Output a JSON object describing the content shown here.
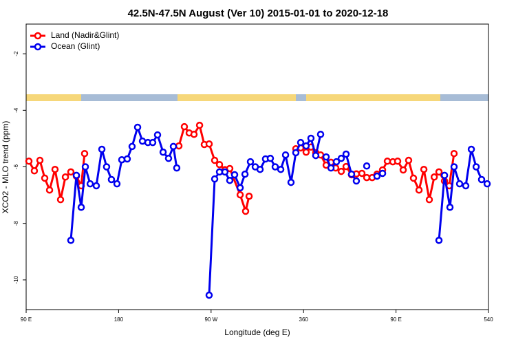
{
  "chart_data": {
    "type": "line",
    "title": "42.5N-47.5N August (Ver 10)   2015-01-01 to 2020-12-18",
    "x_label": "Longitude (deg E)",
    "y_label": "XCO2 - MLO trend (ppm)",
    "xlim": [
      90,
      540
    ],
    "xticks": [
      {
        "value": 90,
        "label": "90 E"
      },
      180,
      {
        "value": 270,
        "label": "90 W"
      },
      360,
      {
        "value": 450,
        "label": "90 E"
      },
      540
    ],
    "ylim": [
      -11.05,
      -0.95
    ],
    "yticks": [
      -2,
      -4,
      -6,
      -8,
      -10
    ],
    "legend": "top-left",
    "series": [
      {
        "name": "Land (Nadir&Glint)",
        "color": "#ff0000",
        "x": [
          92.7,
          98,
          103.4,
          108.1,
          112.8,
          118.1,
          123.5,
          128.2,
          133.5,
          138.9,
          143.6,
          146.9,
          null,
          238.7,
          244,
          248.7,
          253.4,
          258.8,
          263.4,
          268.1,
          273.5,
          278.2,
          283.5,
          288.2,
          298.3,
          303.6,
          307,
          null,
          352.5,
          357.2,
          362.5,
          367.2,
          371.9,
          376.6,
          382,
          386.7,
          391.3,
          396.7,
          401.4,
          406.7,
          411.4,
          416.8,
          421.5,
          426.8,
          431.5,
          436.9,
          441.6,
          446.9,
          451.6,
          457,
          462.3,
          467,
          472.4,
          477.1,
          482.4,
          487.2,
          491.8,
          497.2,
          501.8,
          506.5
        ],
        "values": [
          -5.8,
          -6.14,
          -5.77,
          -6.4,
          -6.82,
          -6.09,
          -7.16,
          -6.36,
          -6.18,
          -6.33,
          -6.67,
          -5.53,
          null,
          -5.26,
          -4.58,
          -4.8,
          -4.85,
          -4.53,
          -5.21,
          -5.19,
          -5.77,
          -5.92,
          -6.1,
          -6.06,
          -6.99,
          -7.57,
          -7.04,
          null,
          -5.36,
          -5.33,
          -5.48,
          -5.3,
          -5.5,
          -5.58,
          -5.94,
          -5.84,
          -6.04,
          -6.16,
          -5.99,
          -6.28,
          -6.25,
          -6.23,
          -6.38,
          -6.38,
          -6.26,
          -6.11,
          -5.8,
          -5.82,
          -5.8,
          -6.11,
          -5.77,
          -6.4,
          -6.82,
          -6.09,
          -7.16,
          -6.36,
          -6.18,
          -6.5,
          -6.67,
          -5.53
        ]
      },
      {
        "name": "Ocean (Glint)",
        "color": "#0000ee",
        "x": [
          133.5,
          138.9,
          143.6,
          147.6,
          152.3,
          158.3,
          163.7,
          168.3,
          173,
          178.4,
          183.1,
          188.4,
          193.1,
          198.5,
          203.2,
          208.5,
          213.2,
          217.9,
          223.3,
          228.6,
          233.3,
          236.6,
          null,
          268.1,
          273.5,
          278.2,
          283.5,
          288.2,
          292.9,
          298.3,
          303,
          308.3,
          313,
          317.7,
          323,
          327.7,
          332.4,
          337.8,
          342.5,
          347.8,
          352.5,
          357.2,
          362.5,
          367.2,
          371.9,
          376.6,
          null,
          382,
          386.7,
          392,
          396.7,
          401.4,
          406.7,
          411.4,
          null,
          421.5,
          null,
          431.5,
          436.9,
          null,
          491.8,
          497.2,
          502.5,
          506.5,
          511.9,
          517.9,
          523.3,
          528,
          533.3,
          538.7
        ],
        "values": [
          -8.6,
          -6.3,
          -7.43,
          -6.0,
          -6.6,
          -6.67,
          -5.38,
          -6.0,
          -6.45,
          -6.6,
          -5.75,
          -5.72,
          -5.28,
          -4.6,
          -5.09,
          -5.14,
          -5.14,
          -4.87,
          -5.48,
          -5.7,
          -5.28,
          -6.04,
          null,
          -10.54,
          -6.43,
          -6.18,
          -6.18,
          -6.48,
          -6.28,
          -6.74,
          -6.26,
          -5.82,
          -6.0,
          -6.09,
          -5.72,
          -5.7,
          -6.0,
          -6.09,
          -5.58,
          -6.55,
          -5.5,
          -5.14,
          -5.26,
          -4.99,
          -5.6,
          -4.85,
          null,
          -5.65,
          -6.04,
          -5.82,
          -5.7,
          -5.55,
          -6.26,
          -6.5,
          null,
          -5.97,
          null,
          -6.33,
          -6.23,
          null,
          -8.6,
          -6.3,
          -7.43,
          -6.0,
          -6.6,
          -6.67,
          -5.38,
          -6.0,
          -6.45,
          -6.6
        ]
      }
    ]
  }
}
